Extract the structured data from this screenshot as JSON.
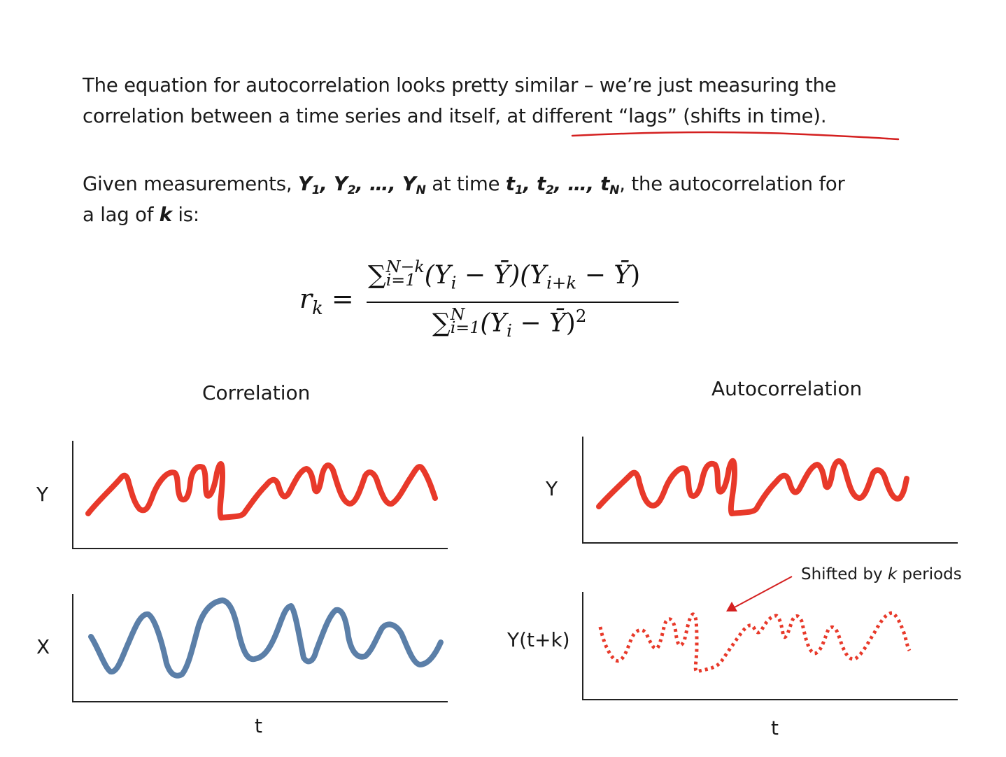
{
  "paragraph1": {
    "line1": "The equation for autocorrelation looks pretty similar – we’re just measuring the",
    "line2": "correlation between a time series and itself, at different “lags” (shifts in time)."
  },
  "paragraph2": {
    "t1": "Given measurements, ",
    "y": "Y",
    "s1": "1",
    "y2": "Y",
    "s2": "2",
    "ell1": ", …, ",
    "yn": "Y",
    "sn": "N",
    "t2": " at time ",
    "tt": "t",
    "ts1": "1",
    "tt2": "t",
    "ts2": "2",
    "ell2": ", …, ",
    "ttn": "t",
    "tsn": "N",
    "t3": " the autocorrelation for",
    "line2a": "a lag of ",
    "k": "k",
    "line2b": " is:"
  },
  "equation": {
    "r": "r",
    "k": "k",
    "eq": " = ",
    "sigma": "∑",
    "num_upper": "N−k",
    "num_lower": "i=1",
    "num_body": "(Y",
    "i": "i",
    "minus": " − ",
    "ybar": "Ȳ",
    "num_mid": ")(Y",
    "ik": "i+k",
    "close": ")",
    "den_upper": "N",
    "den_lower": "i=1",
    "den_close": ")",
    "sq": "2"
  },
  "left_panel": {
    "title": "Correlation",
    "y_label": "Y",
    "x_label": "X",
    "t_label": "t"
  },
  "right_panel": {
    "title": "Autocorrelation",
    "y_label": "Y",
    "ytk_label": "Y(t+k)",
    "t_label": "t",
    "annot_pre": "Shifted by ",
    "annot_k": "k",
    "annot_post": " periods"
  },
  "colors": {
    "red": "#e8392a",
    "blue": "#5b7fa8",
    "underline": "#d42020",
    "axis": "#222222"
  }
}
